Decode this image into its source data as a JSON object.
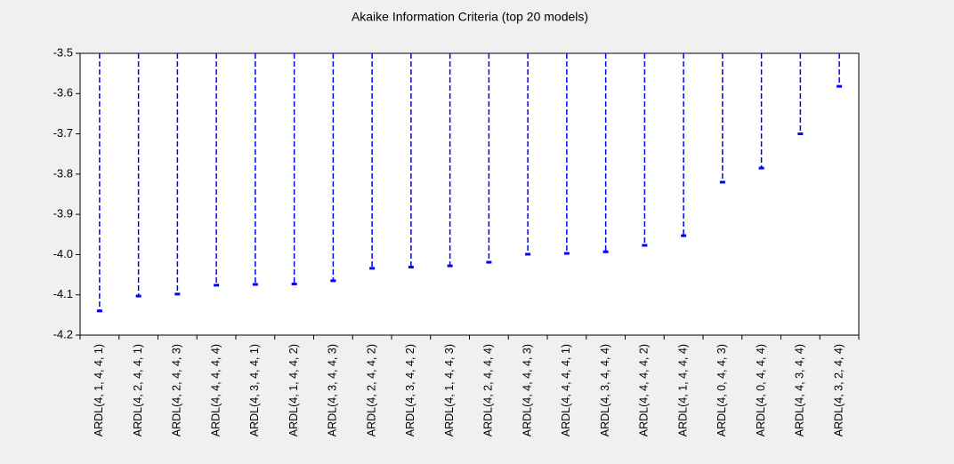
{
  "chart_data": {
    "type": "dropline",
    "title": "Akaike Information Criteria (top 20 models)",
    "categories": [
      "ARDL(4, 1, 4, 4, 1)",
      "ARDL(4, 2, 4, 4, 1)",
      "ARDL(4, 2, 4, 4, 3)",
      "ARDL(4, 4, 4, 4, 4)",
      "ARDL(4, 3, 4, 4, 1)",
      "ARDL(4, 1, 4, 4, 2)",
      "ARDL(4, 3, 4, 4, 3)",
      "ARDL(4, 2, 4, 4, 2)",
      "ARDL(4, 3, 4, 4, 2)",
      "ARDL(4, 1, 4, 4, 3)",
      "ARDL(4, 2, 4, 4, 4)",
      "ARDL(4, 4, 4, 4, 3)",
      "ARDL(4, 4, 4, 4, 1)",
      "ARDL(4, 3, 4, 4, 4)",
      "ARDL(4, 4, 4, 4, 2)",
      "ARDL(4, 1, 4, 4, 4)",
      "ARDL(4, 0, 4, 4, 3)",
      "ARDL(4, 0, 4, 4, 4)",
      "ARDL(4, 4, 3, 4, 4)",
      "ARDL(4, 3, 2, 4, 4)"
    ],
    "values": [
      -4.14,
      -4.103,
      -4.098,
      -4.076,
      -4.074,
      -4.073,
      -4.065,
      -4.034,
      -4.031,
      -4.028,
      -4.019,
      -3.999,
      -3.997,
      -3.993,
      -3.977,
      -3.953,
      -3.82,
      -3.785,
      -3.7,
      -3.582
    ],
    "color": "#0000ff",
    "ylim": [
      -4.2,
      -3.5
    ],
    "yticks": [
      -4.2,
      -4.1,
      {
        "value": -4,
        "label": "-4.0"
      },
      -3.9,
      -3.8,
      -3.7,
      -3.6,
      -3.5
    ]
  }
}
